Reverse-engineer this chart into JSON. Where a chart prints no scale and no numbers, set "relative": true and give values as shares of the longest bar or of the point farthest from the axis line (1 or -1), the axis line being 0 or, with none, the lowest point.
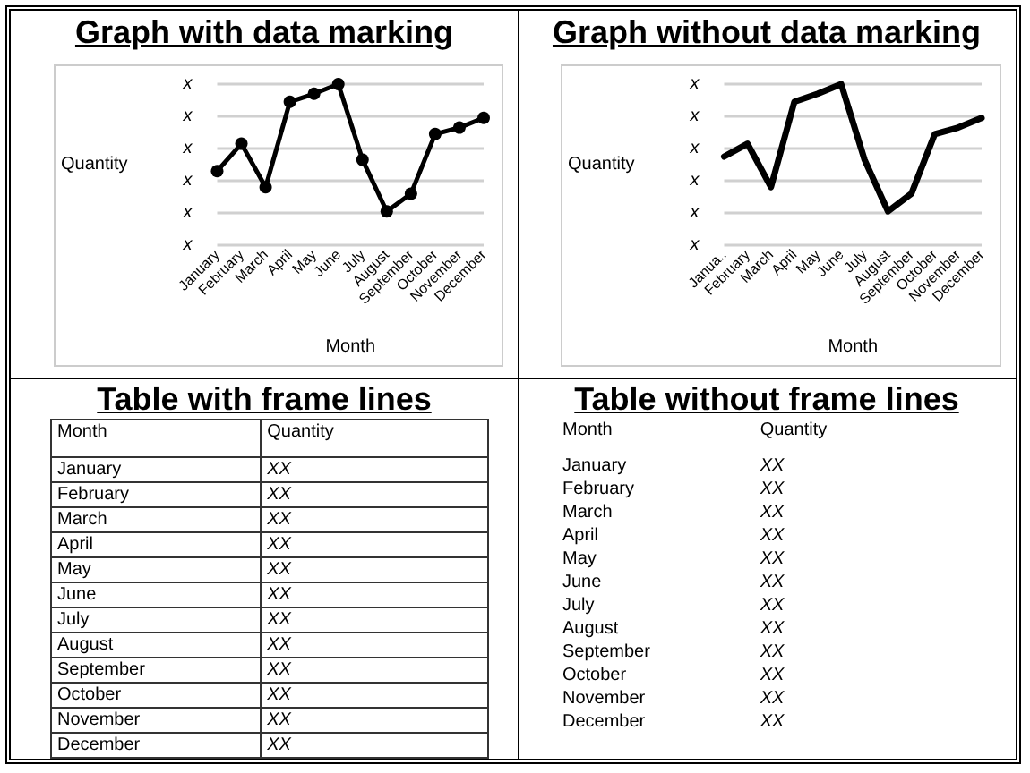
{
  "chart_data": [
    {
      "type": "line",
      "title": "Graph with data marking",
      "xlabel": "Month",
      "ylabel": "Quantity",
      "relative": true,
      "categories": [
        "January",
        "February",
        "March",
        "April",
        "May",
        "June",
        "July",
        "August",
        "September",
        "October",
        "November",
        "December"
      ],
      "series": [
        {
          "color": "#000000",
          "values": [
            0.46,
            0.63,
            0.36,
            0.89,
            0.94,
            1,
            0.53,
            0.21,
            0.32,
            0.69,
            0.73,
            0.79
          ]
        }
      ],
      "annotations": [
        "x",
        "x",
        "x",
        "x",
        "x",
        "x"
      ],
      "grid": "y",
      "marker": "circle",
      "line_style": "solid"
    },
    {
      "type": "line",
      "title": "Graph without data marking",
      "xlabel": "Month",
      "ylabel": "Quantity",
      "relative": true,
      "categories": [
        "Janua..",
        "February",
        "March",
        "April",
        "May",
        "June",
        "July",
        "August",
        "September",
        "October",
        "November",
        "December"
      ],
      "series": [
        {
          "color": "#000000",
          "values": [
            0.55,
            0.63,
            0.36,
            0.89,
            0.94,
            1,
            0.53,
            0.21,
            0.32,
            0.69,
            0.73,
            0.79
          ]
        }
      ],
      "annotations": [
        "x",
        "x",
        "x",
        "x",
        "x",
        "x"
      ],
      "grid": "y",
      "marker": "none",
      "line_style": "solid"
    },
    {
      "type": "other",
      "title": "Table with frame lines",
      "annotations": [
        "Month",
        "Quantity",
        "January",
        "XX",
        "February",
        "XX",
        "March",
        "XX",
        "April",
        "XX",
        "May",
        "XX",
        "June",
        "XX",
        "July",
        "XX",
        "August",
        "XX",
        "September",
        "XX",
        "October",
        "XX",
        "November",
        "XX",
        "December",
        "XX"
      ]
    },
    {
      "type": "other",
      "title": "Table without frame lines",
      "annotations": [
        "Month",
        "Quantity",
        "January",
        "XX",
        "February",
        "XX",
        "March",
        "XX",
        "April",
        "XX",
        "May",
        "XX",
        "June",
        "XX",
        "July",
        "XX",
        "August",
        "XX",
        "September",
        "XX",
        "October",
        "XX",
        "November",
        "XX",
        "December",
        "XX"
      ]
    }
  ]
}
